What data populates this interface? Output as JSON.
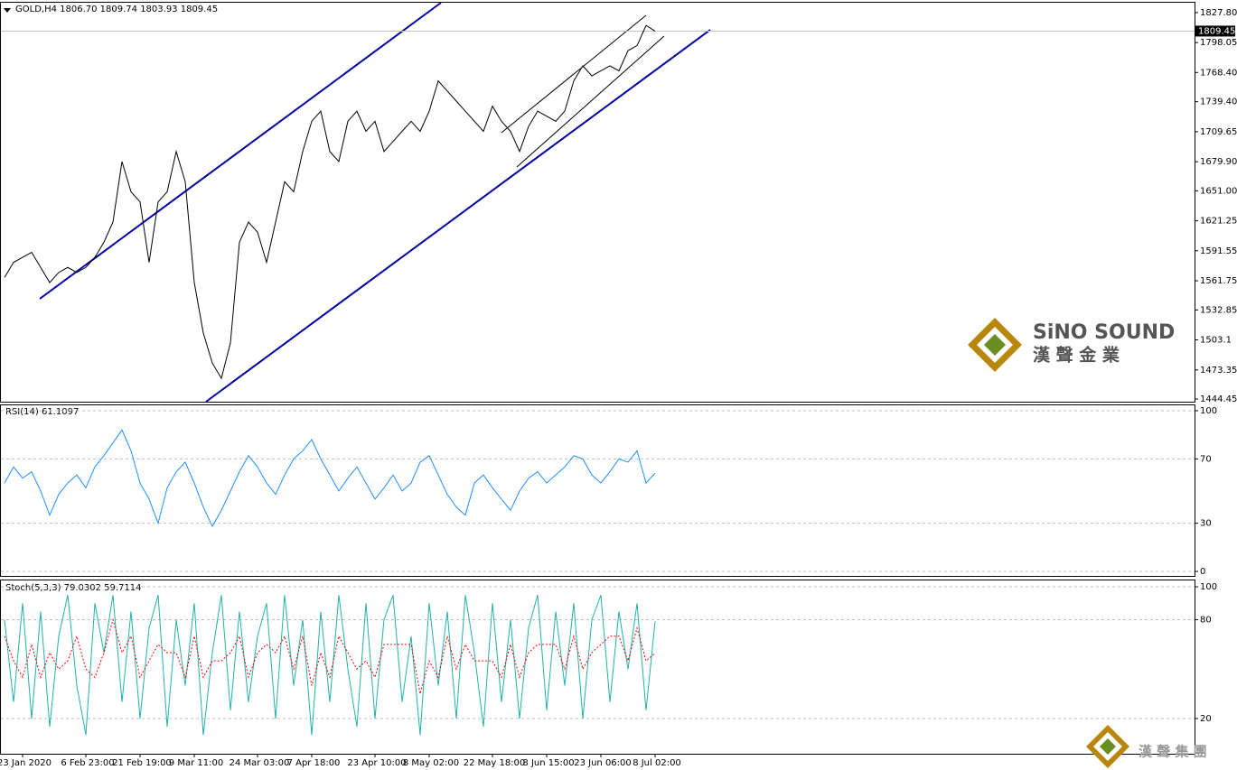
{
  "chart_data": [
    {
      "type": "line",
      "title": "GOLD,H4  1806.70 1809.74 1803.93 1809.45",
      "categories": [
        null,
        null,
        "23 Jan 2020",
        null,
        null,
        null,
        null,
        null,
        null,
        "6 Feb 23:00",
        null,
        null,
        null,
        null,
        null,
        "21 Feb 19:00",
        null,
        null,
        null,
        null,
        null,
        "9 Mar 11:00",
        null,
        null,
        null,
        null,
        null,
        null,
        "24 Mar 03:00",
        null,
        null,
        null,
        null,
        null,
        "7 Apr 18:00",
        null,
        null,
        null,
        null,
        null,
        null,
        "23 Apr 10:00",
        null,
        null,
        null,
        null,
        null,
        "8 May 02:00",
        null,
        null,
        null,
        null,
        null,
        null,
        "22 May 18:00",
        null,
        null,
        null,
        null,
        null,
        "8 Jun 15:00",
        null,
        null,
        null,
        null,
        null,
        "23 Jun 06:00",
        null,
        null,
        null,
        null,
        null,
        "8 Jul 02:00"
      ],
      "series": [
        {
          "name": "GOLD,H4",
          "color": "#000000",
          "values": [
            1565,
            1580,
            1585,
            1590,
            1575,
            1560,
            1570,
            1575,
            1570,
            1575,
            1585,
            1600,
            1620,
            1680,
            1650,
            1640,
            1580,
            1640,
            1650,
            1690,
            1660,
            1560,
            1510,
            1480,
            1465,
            1500,
            1600,
            1620,
            1610,
            1580,
            1620,
            1660,
            1650,
            1690,
            1720,
            1730,
            1690,
            1680,
            1720,
            1730,
            1710,
            1720,
            1690,
            1700,
            1710,
            1720,
            1710,
            1730,
            1760,
            1750,
            1740,
            1730,
            1720,
            1710,
            1735,
            1720,
            1710,
            1690,
            1715,
            1730,
            1725,
            1720,
            1730,
            1760,
            1775,
            1765,
            1770,
            1775,
            1770,
            1790,
            1795,
            1815,
            1809.45
          ]
        }
      ],
      "last_price": {
        "value": 1809.45,
        "label": "1809.45"
      },
      "ylim": [
        1441.8,
        1838.5
      ],
      "yticks": [
        {
          "value": 1827.8,
          "label": "1827.80"
        },
        {
          "value": 1798.05,
          "label": "1798.05"
        },
        {
          "value": 1768.4,
          "label": "1768.40"
        },
        {
          "value": 1739.4,
          "label": "1739.40"
        },
        {
          "value": 1709.65,
          "label": "1709.65"
        },
        {
          "value": 1679.9,
          "label": "1679.90"
        },
        {
          "value": 1651.0,
          "label": "1651.00"
        },
        1621.25,
        1591.55,
        1561.75,
        1532.85,
        1503.1,
        1473.35,
        1444.45
      ]
    },
    {
      "type": "line",
      "title": "RSI(14) 61.1097",
      "series": [
        {
          "name": "RSI(14)",
          "color": "#1e90ff",
          "values": [
            55,
            65,
            58,
            62,
            50,
            35,
            48,
            55,
            60,
            52,
            65,
            72,
            80,
            88,
            75,
            55,
            45,
            30,
            52,
            62,
            68,
            55,
            40,
            28,
            38,
            50,
            62,
            72,
            65,
            55,
            48,
            60,
            70,
            75,
            82,
            70,
            60,
            50,
            58,
            65,
            55,
            45,
            52,
            60,
            50,
            55,
            68,
            72,
            60,
            48,
            40,
            35,
            55,
            60,
            52,
            45,
            38,
            50,
            58,
            62,
            55,
            60,
            65,
            72,
            70,
            60,
            55,
            62,
            70,
            68,
            75,
            55,
            61.1097
          ]
        }
      ],
      "ylim": [
        -2.8,
        103.9
      ],
      "yticks": [
        0,
        30,
        70,
        100
      ]
    },
    {
      "type": "line",
      "title": "Stoch(5,3,3) 79.0302 59.7114",
      "series": [
        {
          "name": "%K",
          "color": "#20b2aa",
          "values": [
            80,
            30,
            90,
            20,
            85,
            15,
            70,
            95,
            40,
            10,
            90,
            60,
            95,
            30,
            85,
            20,
            75,
            95,
            15,
            80,
            40,
            90,
            10,
            60,
            95,
            25,
            85,
            30,
            70,
            90,
            20,
            95,
            40,
            80,
            10,
            85,
            30,
            95,
            50,
            15,
            90,
            20,
            80,
            95,
            30,
            70,
            10,
            90,
            40,
            85,
            20,
            95,
            60,
            15,
            90,
            30,
            80,
            20,
            75,
            95,
            25,
            85,
            40,
            90,
            20,
            80,
            95,
            30,
            85,
            50,
            90,
            25,
            79.0302
          ]
        },
        {
          "name": "%D",
          "color": "#ff0000",
          "values": [
            70,
            55,
            45,
            65,
            45,
            60,
            50,
            55,
            70,
            50,
            45,
            60,
            80,
            60,
            70,
            45,
            55,
            65,
            60,
            60,
            45,
            70,
            45,
            55,
            55,
            60,
            70,
            45,
            60,
            65,
            60,
            70,
            50,
            70,
            40,
            60,
            45,
            70,
            60,
            50,
            55,
            45,
            65,
            65,
            65,
            65,
            35,
            55,
            45,
            70,
            50,
            65,
            55,
            55,
            55,
            45,
            65,
            45,
            60,
            65,
            65,
            65,
            50,
            70,
            50,
            60,
            65,
            70,
            70,
            55,
            75,
            55,
            59.7114
          ]
        }
      ],
      "ylim": [
        -1.4,
        104.4
      ],
      "yticks": [
        20,
        80,
        100
      ]
    }
  ],
  "watermark": {
    "brand": "SiNO SOUND",
    "chinese": "漢 聲 金 業",
    "footer": "漢 聲 集 團"
  }
}
